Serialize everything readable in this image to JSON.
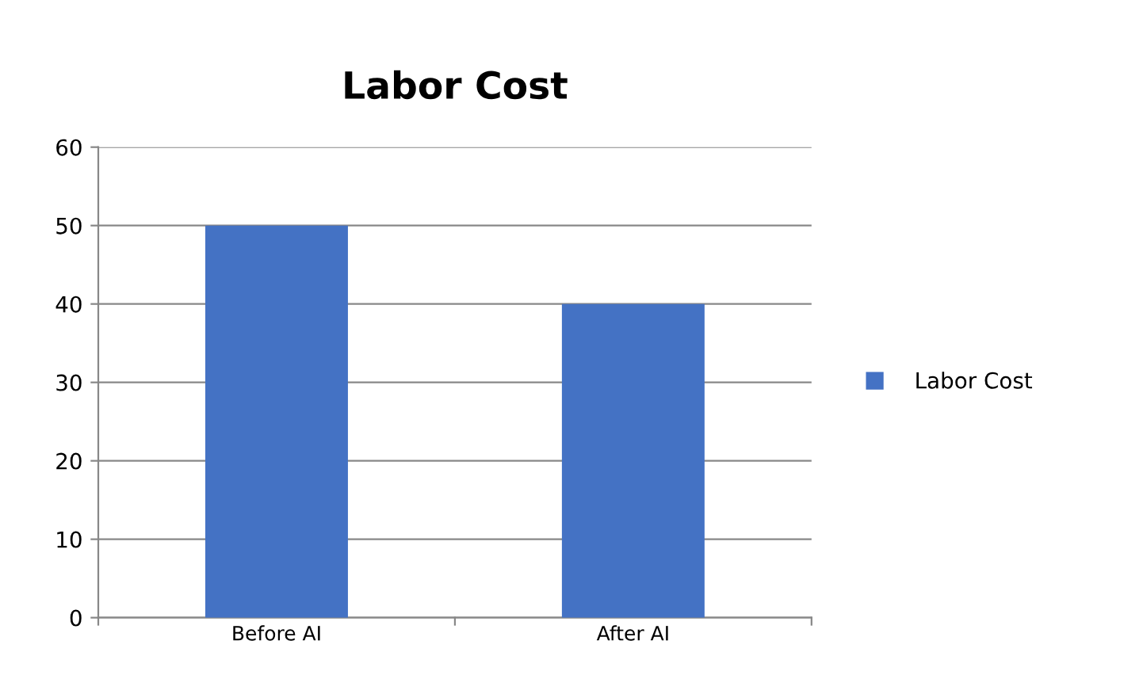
{
  "chart_data": {
    "type": "bar",
    "title": "Labor Cost",
    "categories": [
      "Before AI",
      "After AI"
    ],
    "series": [
      {
        "name": "Labor Cost",
        "color": "#4472c4",
        "values": [
          50,
          40
        ]
      }
    ],
    "ylim": [
      0,
      60
    ],
    "yticks": [
      0,
      10,
      20,
      30,
      40,
      50,
      60
    ],
    "grid": "y",
    "legend": "right"
  }
}
